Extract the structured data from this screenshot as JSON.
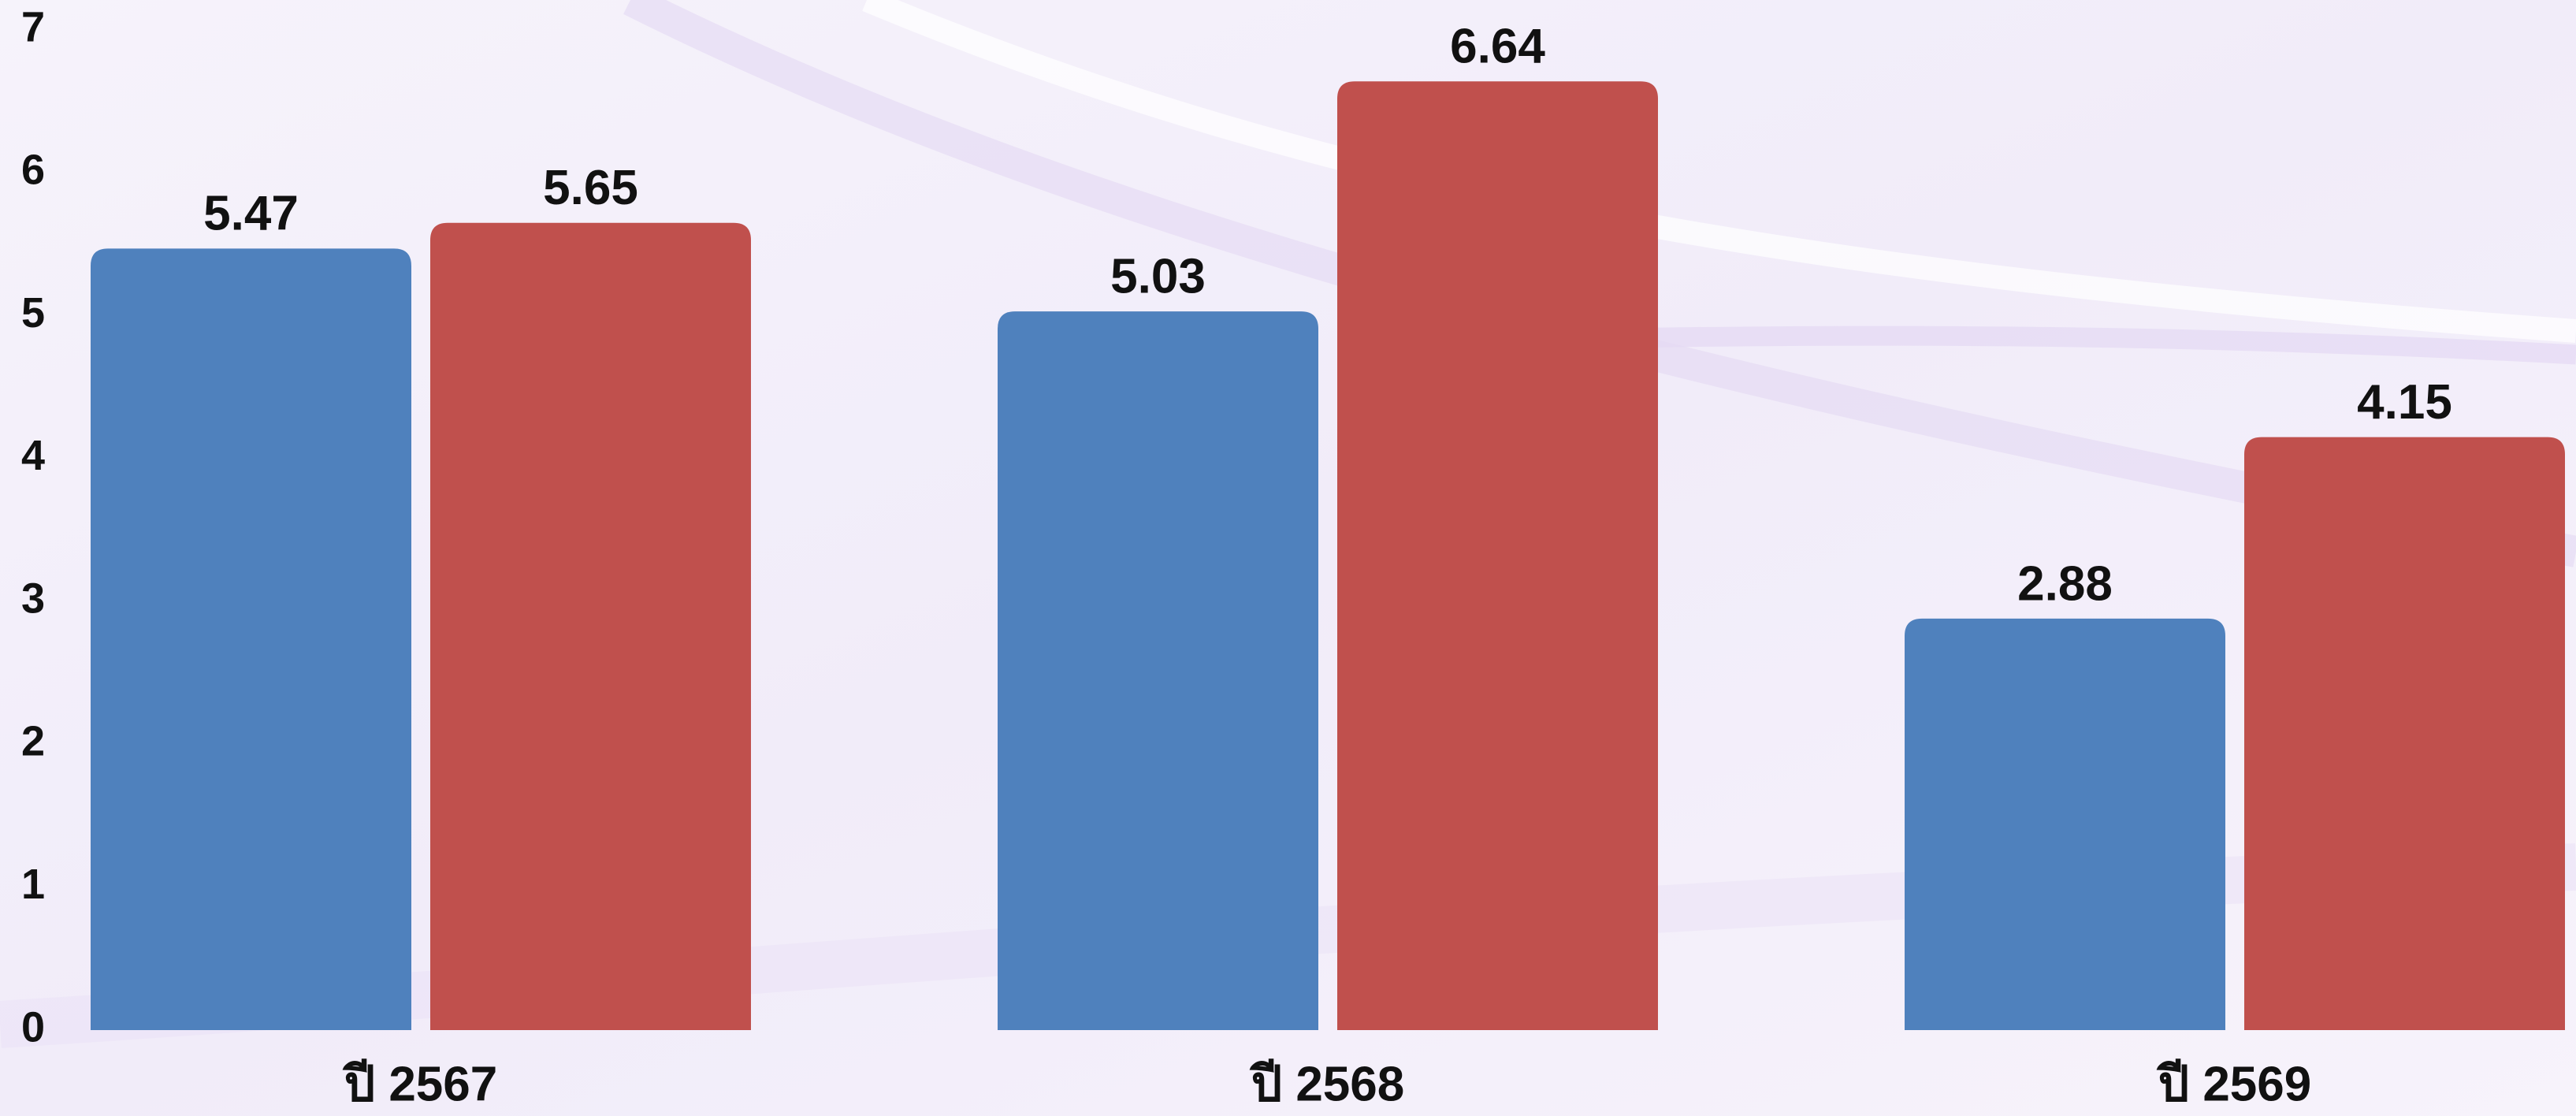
{
  "chart_data": {
    "type": "bar",
    "categories": [
      "ปี 2567",
      "ปี 2568",
      "ปี 2569"
    ],
    "series": [
      {
        "color": "#4f81bd",
        "values": [
          5.47,
          5.03,
          2.88
        ]
      },
      {
        "color": "#c0504d",
        "values": [
          5.65,
          6.64,
          4.15
        ]
      }
    ],
    "ylim": [
      0,
      7
    ],
    "yticks": [
      0,
      1,
      2,
      3,
      4,
      5,
      6,
      7
    ],
    "grid": false
  }
}
